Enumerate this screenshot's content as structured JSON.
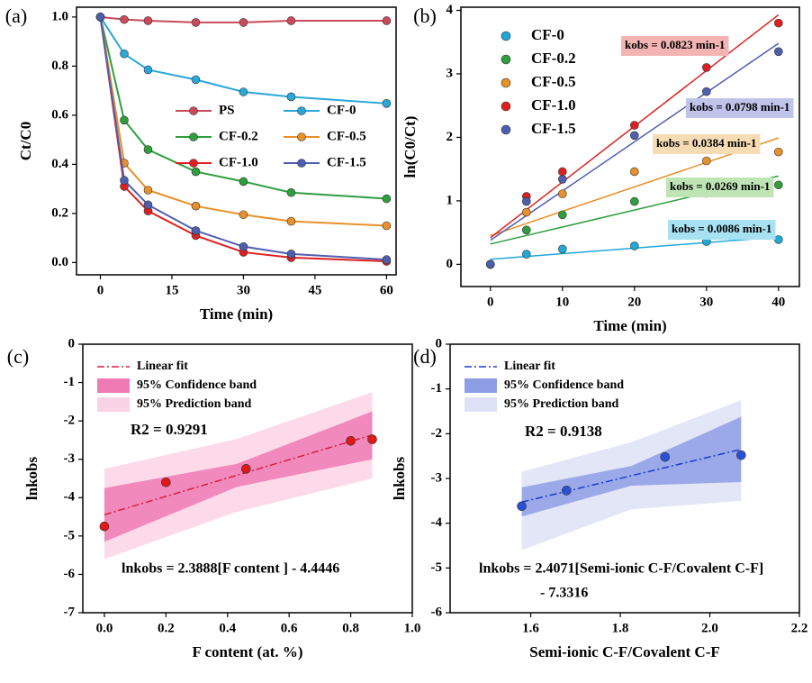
{
  "chart_data": [
    {
      "type": "line",
      "panel_label": "(a)",
      "xlabel": "Time (min)",
      "ylabel": "Ct/C0",
      "x": [
        0,
        5,
        10,
        20,
        30,
        40,
        60
      ],
      "xlim": [
        -5,
        62
      ],
      "xticks": [
        0,
        15,
        30,
        45,
        60
      ],
      "ylim": [
        -0.05,
        1.04
      ],
      "yticks": [
        {
          "value": 0,
          "label": "0.0"
        },
        0.2,
        0.4,
        0.6,
        0.8,
        {
          "value": 1,
          "label": "1.0"
        }
      ],
      "series": [
        {
          "name": "PS",
          "color": "#c94a5a",
          "values": [
            1.0,
            0.99,
            0.985,
            0.978,
            0.978,
            0.985,
            0.985
          ]
        },
        {
          "name": "CF-0",
          "color": "#2aa7d8",
          "values": [
            1.0,
            0.85,
            0.785,
            0.745,
            0.695,
            0.675,
            0.648
          ]
        },
        {
          "name": "CF-0.2",
          "color": "#2e9e3e",
          "values": [
            1.0,
            0.58,
            0.46,
            0.37,
            0.33,
            0.285,
            0.26
          ]
        },
        {
          "name": "CF-0.5",
          "color": "#e8902a",
          "values": [
            1.0,
            0.405,
            0.295,
            0.23,
            0.195,
            0.168,
            0.15
          ]
        },
        {
          "name": "CF-1.0",
          "color": "#e02020",
          "values": [
            1.0,
            0.31,
            0.21,
            0.11,
            0.042,
            0.02,
            0.005
          ]
        },
        {
          "name": "CF-1.5",
          "color": "#4f5fb0",
          "values": [
            1.0,
            0.335,
            0.235,
            0.13,
            0.065,
            0.035,
            0.012
          ]
        }
      ]
    },
    {
      "type": "scatter",
      "panel_label": "(b)",
      "xlabel": "Time (min)",
      "ylabel": "ln(C0/Ct)",
      "x": [
        0,
        5,
        10,
        20,
        30,
        40
      ],
      "xlim": [
        -4.1,
        42.9
      ],
      "xticks": [
        0,
        10,
        20,
        30,
        40
      ],
      "ylim": [
        -0.35,
        4.05
      ],
      "yticks": [
        0,
        1,
        2,
        3,
        4
      ],
      "fit_x": [
        0,
        40
      ],
      "series": [
        {
          "name": "CF-0",
          "color": "#1fa8d8",
          "box_color": "#a8e2f2",
          "values": [
            0,
            0.16,
            0.24,
            0.29,
            0.36,
            0.39
          ],
          "fit_values": [
            0.08,
            0.43
          ],
          "annotation": "kobs = 0.0086 min-1"
        },
        {
          "name": "CF-0.2",
          "color": "#2e9e3e",
          "box_color": "#bfe5b5",
          "values": [
            0,
            0.54,
            0.78,
            0.99,
            1.12,
            1.25
          ],
          "fit_values": [
            0.32,
            1.39
          ],
          "annotation": "kobs = 0.0269 min-1"
        },
        {
          "name": "CF-0.5",
          "color": "#e8902a",
          "box_color": "#f6dcb4",
          "values": [
            0,
            0.82,
            1.11,
            1.46,
            1.63,
            1.77
          ],
          "fit_values": [
            0.45,
            1.99
          ],
          "annotation": "kobs = 0.0384 min-1"
        },
        {
          "name": "CF-1.0",
          "color": "#e02020",
          "box_color": "#f4b4b4",
          "values": [
            0,
            1.07,
            1.46,
            2.19,
            3.1,
            3.8
          ],
          "fit_values": [
            0.42,
            3.93
          ],
          "annotation": "kobs = 0.0823 min-1"
        },
        {
          "name": "CF-1.5",
          "color": "#4f5fb0",
          "box_color": "#c0c4ea",
          "values": [
            0,
            0.99,
            1.34,
            2.03,
            2.72,
            3.35
          ],
          "fit_values": [
            0.38,
            3.48
          ],
          "annotation": "kobs = 0.0798 min-1"
        }
      ]
    },
    {
      "type": "scatter",
      "panel_label": "(c)",
      "xlabel": "F content (at. %)",
      "ylabel": "lnkobs",
      "x": [
        0,
        0.2,
        0.46,
        0.8,
        0.87
      ],
      "values": [
        -4.75,
        -3.6,
        -3.25,
        -2.52,
        -2.48
      ],
      "color": "#e01818",
      "xlim": [
        -0.07,
        1.0
      ],
      "xticks": [
        {
          "value": 0,
          "label": "0.0"
        },
        0.2,
        0.4,
        0.6,
        0.8,
        {
          "value": 1,
          "label": "1.0"
        }
      ],
      "ylim": [
        -7,
        0
      ],
      "yticks": [
        0,
        -1,
        -2,
        -3,
        -4,
        -5,
        -6,
        -7
      ],
      "fit": {
        "name": "Linear fit",
        "color": "#d62040",
        "x": [
          0,
          0.87
        ],
        "values": [
          -4.4446,
          -2.366
        ]
      },
      "bands": [
        {
          "name": "95% Prediction band",
          "color": "#fbd3e6",
          "x": [
            0,
            0.43,
            0.87
          ],
          "lower": [
            -5.6,
            -4.37,
            -3.5
          ],
          "upper": [
            -3.25,
            -2.47,
            -1.25
          ]
        },
        {
          "name": "95% Confidence band",
          "color": "#f07ab4",
          "x": [
            0,
            0.43,
            0.87
          ],
          "lower": [
            -5.15,
            -3.72,
            -3.0
          ],
          "upper": [
            -3.75,
            -3.12,
            -1.75
          ]
        }
      ],
      "r2_label": "R2 = 0.9291",
      "text_color": "#e0308a",
      "equation": [
        "lnkobs = 2.3888[F content ] - 4.4446"
      ]
    },
    {
      "type": "scatter",
      "panel_label": "(d)",
      "xlabel": "Semi-ionic C-F/Covalent C-F",
      "ylabel": "lnkobs",
      "x": [
        1.58,
        1.68,
        1.9,
        2.07
      ],
      "values": [
        -3.62,
        -3.27,
        -2.52,
        -2.48
      ],
      "color": "#2a50d8",
      "xlim": [
        1.42,
        2.2
      ],
      "xticks": [
        1.6,
        1.8,
        {
          "value": 2,
          "label": "2.0"
        },
        2.2
      ],
      "ylim": [
        -6,
        0
      ],
      "yticks": [
        0,
        -1,
        -2,
        -3,
        -4,
        -5,
        -6
      ],
      "fit": {
        "name": "Linear fit",
        "color": "#1f3ccc",
        "x": [
          1.58,
          2.07
        ],
        "values": [
          -3.528,
          -2.349
        ]
      },
      "bands": [
        {
          "name": "95% Prediction band",
          "color": "#dde2f6",
          "x": [
            1.58,
            1.825,
            2.07
          ],
          "lower": [
            -4.6,
            -3.69,
            -3.5
          ],
          "upper": [
            -2.85,
            -2.19,
            -1.25
          ]
        },
        {
          "name": "95% Confidence band",
          "color": "#8e9ee6",
          "x": [
            1.58,
            1.825,
            2.07
          ],
          "lower": [
            -3.85,
            -3.16,
            -3.08
          ],
          "upper": [
            -3.2,
            -2.72,
            -1.62
          ]
        }
      ],
      "r2_label": "R2 = 0.9138",
      "text_color": "#2040c0",
      "equation": [
        "lnkobs = 2.4071[Semi-ionic C-F/Covalent C-F]",
        "- 7.3316"
      ]
    }
  ]
}
